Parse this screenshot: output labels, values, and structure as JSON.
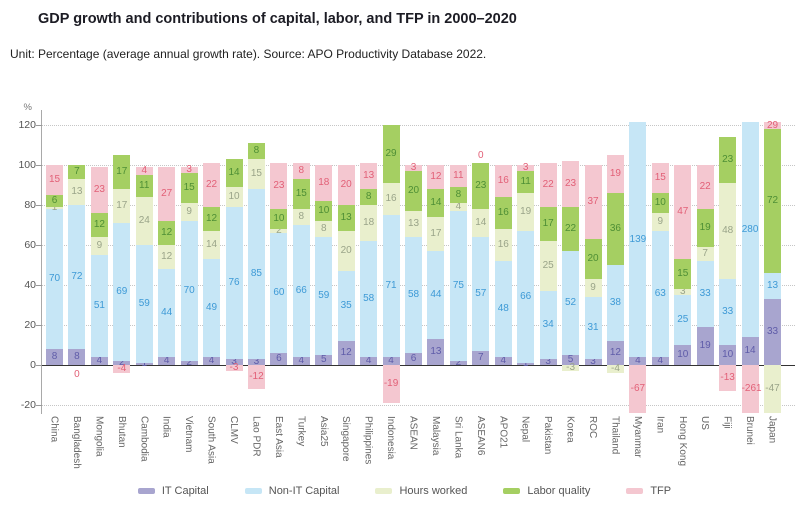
{
  "title": "GDP growth and contributions of capital, labor, and TFP in 2000–2020",
  "subtitle": "Unit: Percentage (average annual growth rate). Source: APO Productivity Database 2022.",
  "chart_data": {
    "type": "bar",
    "stacked": true,
    "title": "GDP growth and contributions of capital, labor, and TFP in 2000–2020",
    "xlabel": "",
    "ylabel": "%",
    "unit_label": "%",
    "ylim": [
      -20,
      120
    ],
    "y_ticks": [
      120,
      100,
      80,
      60,
      40,
      20,
      0,
      -20
    ],
    "grid": "dotted horizontal at every 20, solid dark line at 0",
    "legend_position": "bottom",
    "note": "Bars exceeding the axis range are clipped (Myanmar, Brunei, Japan); hours/labor segments of Myanmar and Brunei are not visible (null).",
    "series": [
      {
        "name": "IT Capital",
        "key": "it",
        "color": "#a8a5cf",
        "label_color": "#5f5ca9"
      },
      {
        "name": "Non-IT Capital",
        "key": "nonit",
        "color": "#c6e6f6",
        "label_color": "#3e9ad6"
      },
      {
        "name": "Hours worked",
        "key": "hours",
        "color": "#e9efcd",
        "label_color": "#9aa489"
      },
      {
        "name": "Labor quality",
        "key": "labor",
        "color": "#a5cf62",
        "label_color": "#4e8f35"
      },
      {
        "name": "TFP",
        "key": "tfp",
        "color": "#f4c7d0",
        "label_color": "#e26077"
      }
    ],
    "categories": [
      "China",
      "Bangladesh",
      "Mongolia",
      "Bhutan",
      "Cambodia",
      "India",
      "Vietnam",
      "South Asia",
      "CLMV",
      "Lao PDR",
      "East Asia",
      "Turkey",
      "Asia25",
      "Singapore",
      "Philippines",
      "Indonesia",
      "ASEAN",
      "Malaysia",
      "Sri Lanka",
      "ASEAN6",
      "APO21",
      "Nepal",
      "Pakistan",
      "Korea",
      "ROC",
      "Thailand",
      "Myanmar",
      "Iran",
      "Hong Kong",
      "US",
      "Fiji",
      "Brunei",
      "Japan"
    ],
    "values": [
      [
        8,
        70,
        1,
        6,
        15
      ],
      [
        8,
        72,
        13,
        7,
        0
      ],
      [
        4,
        51,
        9,
        12,
        23
      ],
      [
        2,
        69,
        17,
        17,
        -4
      ],
      [
        1,
        59,
        24,
        11,
        4
      ],
      [
        4,
        44,
        12,
        12,
        27
      ],
      [
        2,
        70,
        9,
        15,
        3
      ],
      [
        4,
        49,
        14,
        12,
        22
      ],
      [
        3,
        76,
        10,
        14,
        -3
      ],
      [
        3,
        85,
        15,
        8,
        -12
      ],
      [
        6,
        60,
        2,
        10,
        23
      ],
      [
        4,
        66,
        8,
        15,
        8
      ],
      [
        5,
        59,
        8,
        10,
        18
      ],
      [
        12,
        35,
        20,
        13,
        20
      ],
      [
        4,
        58,
        18,
        8,
        13
      ],
      [
        4,
        71,
        16,
        29,
        -19
      ],
      [
        6,
        58,
        13,
        20,
        3
      ],
      [
        13,
        44,
        17,
        14,
        12
      ],
      [
        2,
        75,
        4,
        8,
        11
      ],
      [
        7,
        57,
        14,
        23,
        0
      ],
      [
        4,
        48,
        16,
        16,
        16
      ],
      [
        1,
        66,
        19,
        11,
        3
      ],
      [
        3,
        34,
        25,
        17,
        22
      ],
      [
        5,
        52,
        -3,
        22,
        23
      ],
      [
        3,
        31,
        9,
        20,
        37
      ],
      [
        12,
        38,
        -4,
        36,
        19
      ],
      [
        4,
        139,
        null,
        null,
        -67
      ],
      [
        4,
        63,
        9,
        10,
        15
      ],
      [
        10,
        25,
        3,
        15,
        47
      ],
      [
        19,
        33,
        7,
        19,
        22
      ],
      [
        10,
        33,
        48,
        23,
        -13
      ],
      [
        14,
        280,
        null,
        null,
        -261
      ],
      [
        33,
        13,
        -47,
        72,
        29
      ]
    ],
    "zero_label_below": [
      "Bangladesh"
    ]
  }
}
